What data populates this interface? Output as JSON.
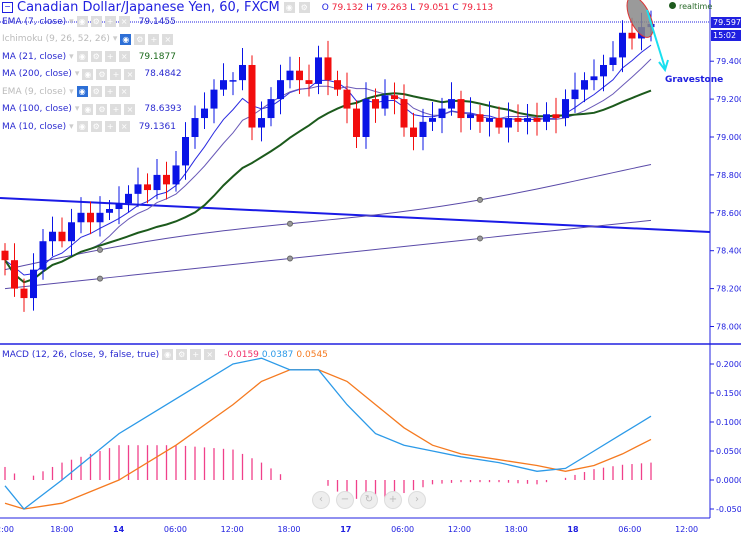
{
  "header": {
    "title": "Canadian Dollar/Japanese Yen, 60, FXCM",
    "o_label": "O",
    "o": "79.132",
    "h_label": "H",
    "h": "79.263",
    "l_label": "L",
    "l": "79.051",
    "c_label": "C",
    "c": "79.113",
    "realtime": "realtime"
  },
  "indicators": [
    {
      "label": "EMA (7, close)",
      "value": "79.1455",
      "dim": false
    },
    {
      "label": "Ichimoku (9, 26, 52, 26)",
      "value": "",
      "dim": true
    },
    {
      "label": "MA (21, close)",
      "value": "79.1877",
      "dim": false,
      "color": "#1c6a1c"
    },
    {
      "label": "MA (200, close)",
      "value": "78.4842",
      "dim": false
    },
    {
      "label": "EMA (9, close)",
      "value": "",
      "dim": true
    },
    {
      "label": "MA (100, close)",
      "value": "78.6393",
      "dim": false
    },
    {
      "label": "MA (10, close)",
      "value": "79.1361",
      "dim": false
    }
  ],
  "macd": {
    "label": "MACD (12, 26, close, 9, false, true)",
    "hist": "-0.0159",
    "macd": "0.0387",
    "signal": "0.0545"
  },
  "annotation": "Gravestone",
  "price_tag": "79.597",
  "time_tag": "15:02",
  "colors": {
    "up": "#0a14e6",
    "down": "#f20d0d",
    "ma21": "#1c5a1c",
    "macd": "#2c9ae8",
    "signal": "#f57a20",
    "hist": "#f0408a"
  },
  "chart_data": [
    {
      "type": "candlestick",
      "ylim": [
        77.9,
        79.65
      ],
      "yticks": [
        "79.400",
        "79.200",
        "79.000",
        "78.800",
        "78.600",
        "78.400",
        "78.200",
        "78.000"
      ],
      "xticks": [
        "2:00",
        "18:00",
        "14",
        "06:00",
        "12:00",
        "18:00",
        "17",
        "06:00",
        "12:00",
        "18:00",
        "18",
        "06:00",
        "12:00"
      ],
      "closes": [
        78.35,
        78.2,
        78.15,
        78.3,
        78.45,
        78.5,
        78.45,
        78.55,
        78.6,
        78.55,
        78.6,
        78.62,
        78.65,
        78.7,
        78.75,
        78.72,
        78.8,
        78.75,
        78.85,
        79.0,
        79.1,
        79.15,
        79.25,
        79.3,
        79.3,
        79.38,
        79.05,
        79.1,
        79.2,
        79.3,
        79.35,
        79.3,
        79.28,
        79.42,
        79.3,
        79.25,
        79.15,
        79.0,
        79.2,
        79.15,
        79.22,
        79.2,
        79.05,
        79.0,
        79.08,
        79.1,
        79.15,
        79.2,
        79.1,
        79.12,
        79.08,
        79.1,
        79.05,
        79.1,
        79.08,
        79.1,
        79.08,
        79.12,
        79.1,
        79.2,
        79.25,
        79.3,
        79.32,
        79.38,
        79.42,
        79.55,
        79.52,
        79.58,
        79.597
      ],
      "ma100": [
        78.2,
        78.56
      ],
      "ma200": [
        78.3,
        78.84
      ]
    },
    {
      "type": "line",
      "yticks": [
        "0.2000",
        "0.1500",
        "0.1000",
        "0.0500",
        "0.0000",
        "-0.050"
      ],
      "ylim": [
        -0.07,
        0.22
      ],
      "idx": [
        0,
        2,
        6,
        12,
        18,
        24,
        27,
        30,
        33,
        36,
        39,
        42,
        45,
        48,
        52,
        56,
        59,
        62,
        65,
        68
      ],
      "macd": [
        -0.01,
        -0.05,
        0.0,
        0.08,
        0.14,
        0.2,
        0.21,
        0.19,
        0.19,
        0.13,
        0.08,
        0.06,
        0.05,
        0.04,
        0.03,
        0.015,
        0.02,
        0.05,
        0.08,
        0.11
      ],
      "signal": [
        -0.04,
        -0.05,
        -0.04,
        0.0,
        0.06,
        0.13,
        0.17,
        0.19,
        0.19,
        0.17,
        0.13,
        0.09,
        0.06,
        0.045,
        0.035,
        0.025,
        0.015,
        0.025,
        0.045,
        0.07
      ]
    }
  ]
}
